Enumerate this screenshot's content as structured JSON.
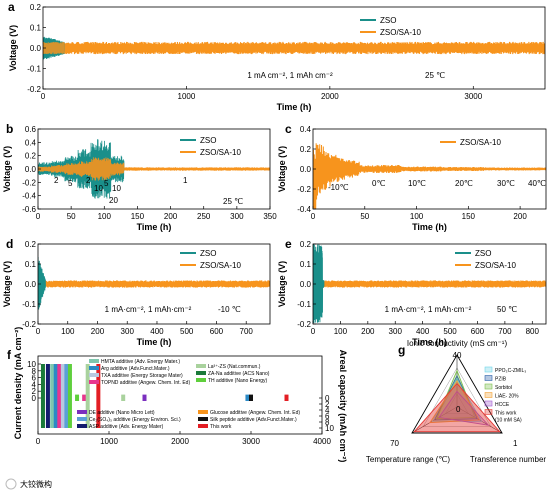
{
  "colors": {
    "zso": "#1a8f8a",
    "sa": "#f7941d"
  },
  "chart_data": [
    {
      "id": "a",
      "type": "line",
      "panel_label": "a",
      "xlabel": "Time (h)",
      "ylabel": "Voltage (V)",
      "xlim": [
        0,
        3500
      ],
      "ylim": [
        -0.2,
        0.2
      ],
      "xticks": [
        0,
        1000,
        2000,
        3000
      ],
      "yticks": [
        -0.2,
        -0.1,
        0.0,
        0.1,
        0.2
      ],
      "xtick_labels": [
        "0",
        "1000",
        "2000",
        "3000"
      ],
      "ytick_labels": [
        "-0.2",
        "-0.1",
        "0.0",
        "0.1",
        "0.2"
      ],
      "series": [
        {
          "name": "ZSO",
          "x": [
            0,
            150
          ],
          "amplitude": 0.06
        },
        {
          "name": "ZSO/SA-10",
          "x": [
            0,
            3500
          ],
          "amplitude": 0.03
        }
      ],
      "annotations": [
        "1 mA cm⁻², 1 mAh cm⁻²",
        "25 ℃"
      ]
    },
    {
      "id": "b",
      "type": "line",
      "panel_label": "b",
      "xlabel": "Time (h)",
      "ylabel": "Voltage (V)",
      "xlim": [
        0,
        350
      ],
      "ylim": [
        -0.6,
        0.6
      ],
      "xticks": [
        0,
        50,
        100,
        150,
        200,
        250,
        300,
        350
      ],
      "yticks": [
        -0.6,
        -0.4,
        -0.2,
        0.0,
        0.2,
        0.4,
        0.6
      ],
      "xtick_labels": [
        "0",
        "50",
        "100",
        "150",
        "200",
        "250",
        "300",
        "350"
      ],
      "ytick_labels": [
        "-0.6",
        "-0.4",
        "-0.2",
        "0.0",
        "0.2",
        "0.4",
        "0.6"
      ],
      "series": [
        {
          "name": "ZSO",
          "x": [
            0,
            130
          ]
        },
        {
          "name": "ZSO/SA-10",
          "x": [
            0,
            350
          ]
        }
      ],
      "annotations": [
        "2",
        "2",
        "5",
        "5",
        "10",
        "10",
        "20",
        "1",
        "25 ℃"
      ]
    },
    {
      "id": "c",
      "type": "line",
      "panel_label": "c",
      "xlabel": "Time (h)",
      "ylabel": "Voltage (V)",
      "xlim": [
        0,
        225
      ],
      "ylim": [
        -0.4,
        0.4
      ],
      "xticks": [
        0,
        50,
        100,
        150,
        200
      ],
      "yticks": [
        -0.4,
        -0.2,
        0.0,
        0.2,
        0.4
      ],
      "xtick_labels": [
        "0",
        "50",
        "100",
        "150",
        "200"
      ],
      "ytick_labels": [
        "-0.4",
        "-0.2",
        "0.0",
        "0.2",
        "0.4"
      ],
      "series": [
        {
          "name": "ZSO/SA-10",
          "x": [
            0,
            225
          ]
        }
      ],
      "annotations": [
        "-10℃",
        "0℃",
        "10℃",
        "20℃",
        "30℃",
        "40℃"
      ]
    },
    {
      "id": "d",
      "type": "line",
      "panel_label": "d",
      "xlabel": "Time (h)",
      "ylabel": "Voltage (V)",
      "xlim": [
        0,
        780
      ],
      "ylim": [
        -0.2,
        0.2
      ],
      "xticks": [
        0,
        100,
        200,
        300,
        400,
        500,
        600,
        700
      ],
      "yticks": [
        -0.2,
        -0.1,
        0.0,
        0.1,
        0.2
      ],
      "xtick_labels": [
        "0",
        "100",
        "200",
        "300",
        "400",
        "500",
        "600",
        "700"
      ],
      "ytick_labels": [
        "-0.2",
        "-0.1",
        "0.0",
        "0.1",
        "0.2"
      ],
      "series": [
        {
          "name": "ZSO",
          "x": [
            0,
            25
          ]
        },
        {
          "name": "ZSO/SA-10",
          "x": [
            0,
            780
          ]
        }
      ],
      "annotations": [
        "1 mA·cm⁻², 1 mAh·cm⁻²",
        "-10 ℃"
      ]
    },
    {
      "id": "e",
      "type": "line",
      "panel_label": "e",
      "xlabel": "Time (h)",
      "ylabel": "Voltage (V)",
      "xlim": [
        0,
        850
      ],
      "ylim": [
        -0.2,
        0.2
      ],
      "xticks": [
        0,
        100,
        200,
        300,
        400,
        500,
        600,
        700,
        800
      ],
      "yticks": [
        -0.2,
        -0.1,
        0.0,
        0.1,
        0.2
      ],
      "xtick_labels": [
        "0",
        "100",
        "200",
        "300",
        "400",
        "500",
        "600",
        "700",
        "800"
      ],
      "ytick_labels": [
        "-0.2",
        "-0.1",
        "0.0",
        "0.1",
        "0.2"
      ],
      "series": [
        {
          "name": "ZSO",
          "x": [
            0,
            40
          ]
        },
        {
          "name": "ZSO/SA-10",
          "x": [
            0,
            850
          ]
        }
      ],
      "annotations": [
        "1 mA·cm⁻², 1 mAh·cm⁻²",
        "50 ℃"
      ]
    },
    {
      "id": "f",
      "type": "bar",
      "panel_label": "f",
      "ylabel": "Current density (mA cm⁻²)",
      "y2label": "Areal capacity (mAh cm⁻²)",
      "xlim": [
        0,
        4000
      ],
      "xticks": [
        0,
        1000,
        2000,
        3000,
        4000
      ],
      "xtick_labels": [
        "0",
        "1000",
        "2000",
        "3000",
        "4000"
      ],
      "ylim": [
        0,
        10
      ],
      "yticks": [
        0,
        2,
        4,
        6,
        8,
        10
      ],
      "ytick_labels": [
        "0",
        "2",
        "4",
        "6",
        "8",
        "10"
      ],
      "y2ticks": [
        0,
        2,
        4,
        6,
        8,
        10
      ],
      "y2tick_labels": [
        "0",
        "2",
        "4",
        "6",
        "8",
        "10"
      ],
      "legend": [
        {
          "name": "HMTA additive (Adv. Energy Mater.)",
          "color": "#7fc7ae"
        },
        {
          "name": "Arg additive (Adv.Funct.Mater.)",
          "color": "#2b8ac6"
        },
        {
          "name": "TXA additive (Energy Storage Mater)",
          "color": "#b8c9e0"
        },
        {
          "name": "TOPND additive (Angew. Chem. Int. Ed)",
          "color": "#e8368f"
        },
        {
          "name": "La³⁺-ZS (Nat.commun.)",
          "color": "#a9d29d"
        },
        {
          "name": "ZA-Na additive (ACS Nano)",
          "color": "#1b7a3a"
        },
        {
          "name": "TH additive (Nano Energy)",
          "color": "#5fcf3c"
        },
        {
          "name": "DE additive (Nano Micro Lett)",
          "color": "#7b2fbf"
        },
        {
          "name": "Ce₂(SO₄)₃ additive (Energy Environ. Sci.)",
          "color": "#5aa0d8"
        },
        {
          "name": "ASP additive (Adv. Energy Mater)",
          "color": "#141c6e"
        },
        {
          "name": "Glucose additive (Angew. Chem. Int. Ed)",
          "color": "#f7941d"
        },
        {
          "name": "Silk peptide additive (Adv.Funct.Mater.)",
          "color": "#111111"
        },
        {
          "name": "This work",
          "color": "#e31e24"
        }
      ],
      "bars": [
        {
          "x": 70,
          "cd": 10,
          "cap": 10,
          "color": "#1b7a3a"
        },
        {
          "x": 140,
          "cd": 10,
          "cap": 10,
          "color": "#141c6e"
        },
        {
          "x": 200,
          "cd": 10,
          "cap": 10,
          "color": "#7fc7ae"
        },
        {
          "x": 250,
          "cd": 10,
          "cap": 10,
          "color": "#2b8ac6"
        },
        {
          "x": 300,
          "cd": 10,
          "cap": 10,
          "color": "#e8368f"
        },
        {
          "x": 350,
          "cd": 10,
          "cap": 10,
          "color": "#b8c9e0"
        },
        {
          "x": 400,
          "cd": 10,
          "cap": 10,
          "color": "#5aa0d8"
        },
        {
          "x": 450,
          "cd": 10,
          "cap": 10,
          "color": "#5fcf3c"
        },
        {
          "x": 550,
          "cd": 1,
          "cap": 1,
          "color": "#5fcf3c"
        },
        {
          "x": 650,
          "cd": 1,
          "cap": 1,
          "color": "#e8368f"
        },
        {
          "x": 700,
          "cd": 10,
          "cap": 10,
          "color": "#a9d29d"
        },
        {
          "x": 850,
          "cd": 10,
          "cap": 10,
          "color": "#e31e24"
        },
        {
          "x": 1200,
          "cd": 1,
          "cap": 1,
          "color": "#a9d29d"
        },
        {
          "x": 1500,
          "cd": 1,
          "cap": 1,
          "color": "#7b2fbf"
        },
        {
          "x": 2950,
          "cd": 1,
          "cap": 1,
          "color": "#2b8ac6"
        },
        {
          "x": 3000,
          "cd": 1,
          "cap": 1,
          "color": "#111111"
        },
        {
          "x": 3500,
          "cd": 1,
          "cap": 1,
          "color": "#e31e24"
        }
      ]
    },
    {
      "id": "g",
      "type": "radar",
      "panel_label": "g",
      "axes": [
        "Ionic conductivity (mS cm⁻¹)",
        "Transference number",
        "Temperature range (℃)"
      ],
      "axis_max_labels": [
        "40",
        "1",
        "70"
      ],
      "center_label": "0",
      "series": [
        {
          "name": "PPO₃C-ZMIL₃",
          "color": "#6fd5e8",
          "values": [
            0.55,
            0.55,
            0.55
          ]
        },
        {
          "name": "PZIB",
          "color": "#2a5fa8",
          "values": [
            0.6,
            0.45,
            0.5
          ]
        },
        {
          "name": "Sorbitol",
          "color": "#7ec04f",
          "values": [
            0.7,
            0.4,
            0.45
          ]
        },
        {
          "name": "LiAE- 20%",
          "color": "#f2a33a",
          "values": [
            0.5,
            0.5,
            0.6
          ]
        },
        {
          "name": "HCCE",
          "color": "#a35ed0",
          "values": [
            0.3,
            0.7,
            0.4
          ]
        },
        {
          "name": "This work (10 mM SA)",
          "color": "#e53935",
          "values": [
            0.45,
            0.95,
            0.95
          ]
        }
      ]
    }
  ],
  "watermark": "大铰微构"
}
